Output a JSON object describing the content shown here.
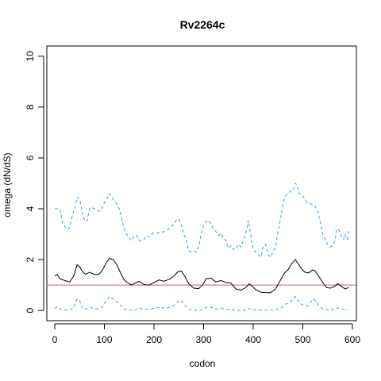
{
  "chart_data": {
    "type": "line",
    "title": "Rv2264c",
    "xlabel": "codon",
    "ylabel": "omega (dN/dS)",
    "xlim": [
      -16,
      608
    ],
    "ylim": [
      -0.4,
      10.4
    ],
    "xticks": [
      0,
      100,
      200,
      300,
      400,
      500,
      600
    ],
    "yticks": [
      0,
      2,
      4,
      6,
      8,
      10
    ],
    "grid": false,
    "reference_line": {
      "y": 1,
      "color": "#c2569c"
    },
    "series": [
      {
        "style": "solid",
        "color": "#000000",
        "points": [
          [
            0,
            1.35
          ],
          [
            5,
            1.42
          ],
          [
            10,
            1.25
          ],
          [
            20,
            1.18
          ],
          [
            30,
            1.12
          ],
          [
            38,
            1.35
          ],
          [
            45,
            1.8
          ],
          [
            50,
            1.72
          ],
          [
            55,
            1.55
          ],
          [
            62,
            1.42
          ],
          [
            70,
            1.5
          ],
          [
            80,
            1.42
          ],
          [
            88,
            1.42
          ],
          [
            95,
            1.55
          ],
          [
            103,
            1.85
          ],
          [
            110,
            2.05
          ],
          [
            118,
            2.0
          ],
          [
            125,
            1.8
          ],
          [
            132,
            1.5
          ],
          [
            140,
            1.2
          ],
          [
            148,
            1.08
          ],
          [
            155,
            1.0
          ],
          [
            162,
            1.08
          ],
          [
            170,
            1.15
          ],
          [
            180,
            1.02
          ],
          [
            190,
            1.0
          ],
          [
            200,
            1.1
          ],
          [
            210,
            1.2
          ],
          [
            220,
            1.15
          ],
          [
            230,
            1.22
          ],
          [
            240,
            1.35
          ],
          [
            248,
            1.52
          ],
          [
            255,
            1.55
          ],
          [
            262,
            1.35
          ],
          [
            270,
            1.05
          ],
          [
            280,
            0.88
          ],
          [
            290,
            0.86
          ],
          [
            298,
            1.0
          ],
          [
            305,
            1.25
          ],
          [
            315,
            1.27
          ],
          [
            325,
            1.12
          ],
          [
            335,
            1.18
          ],
          [
            345,
            1.1
          ],
          [
            355,
            1.08
          ],
          [
            365,
            0.85
          ],
          [
            375,
            0.8
          ],
          [
            385,
            0.9
          ],
          [
            392,
            1.05
          ],
          [
            398,
            0.95
          ],
          [
            405,
            0.82
          ],
          [
            415,
            0.72
          ],
          [
            425,
            0.7
          ],
          [
            435,
            0.7
          ],
          [
            445,
            0.85
          ],
          [
            455,
            1.2
          ],
          [
            462,
            1.45
          ],
          [
            470,
            1.6
          ],
          [
            478,
            1.85
          ],
          [
            485,
            2.0
          ],
          [
            490,
            1.85
          ],
          [
            497,
            1.65
          ],
          [
            505,
            1.5
          ],
          [
            512,
            1.48
          ],
          [
            520,
            1.6
          ],
          [
            525,
            1.55
          ],
          [
            532,
            1.35
          ],
          [
            540,
            1.1
          ],
          [
            548,
            0.9
          ],
          [
            556,
            0.88
          ],
          [
            564,
            0.95
          ],
          [
            570,
            1.05
          ],
          [
            578,
            0.95
          ],
          [
            585,
            0.85
          ],
          [
            592,
            0.9
          ]
        ]
      },
      {
        "style": "dashed",
        "color": "#3aa0e0",
        "points": [
          [
            0,
            4.0
          ],
          [
            5,
            4.0
          ],
          [
            10,
            4.0
          ],
          [
            15,
            3.5
          ],
          [
            20,
            3.3
          ],
          [
            25,
            3.2
          ],
          [
            30,
            3.25
          ],
          [
            35,
            3.7
          ],
          [
            40,
            4.0
          ],
          [
            45,
            4.45
          ],
          [
            50,
            4.4
          ],
          [
            55,
            3.9
          ],
          [
            60,
            3.55
          ],
          [
            65,
            3.5
          ],
          [
            70,
            4.0
          ],
          [
            75,
            4.05
          ],
          [
            80,
            4.0
          ],
          [
            85,
            3.95
          ],
          [
            90,
            3.9
          ],
          [
            95,
            4.0
          ],
          [
            100,
            4.25
          ],
          [
            105,
            4.4
          ],
          [
            110,
            4.6
          ],
          [
            115,
            4.45
          ],
          [
            120,
            4.3
          ],
          [
            125,
            4.2
          ],
          [
            130,
            4.0
          ],
          [
            135,
            3.6
          ],
          [
            140,
            3.2
          ],
          [
            145,
            3.0
          ],
          [
            150,
            2.85
          ],
          [
            155,
            2.75
          ],
          [
            160,
            2.95
          ],
          [
            165,
            2.95
          ],
          [
            170,
            2.75
          ],
          [
            175,
            2.75
          ],
          [
            180,
            2.8
          ],
          [
            185,
            2.95
          ],
          [
            190,
            2.9
          ],
          [
            195,
            3.0
          ],
          [
            200,
            3.05
          ],
          [
            210,
            3.05
          ],
          [
            220,
            3.1
          ],
          [
            230,
            3.2
          ],
          [
            240,
            3.4
          ],
          [
            245,
            3.55
          ],
          [
            250,
            3.6
          ],
          [
            255,
            3.35
          ],
          [
            260,
            3.0
          ],
          [
            265,
            2.8
          ],
          [
            270,
            2.35
          ],
          [
            275,
            2.3
          ],
          [
            280,
            2.35
          ],
          [
            285,
            2.3
          ],
          [
            290,
            2.5
          ],
          [
            295,
            3.0
          ],
          [
            300,
            3.35
          ],
          [
            305,
            3.5
          ],
          [
            310,
            3.55
          ],
          [
            315,
            3.4
          ],
          [
            320,
            3.2
          ],
          [
            325,
            3.1
          ],
          [
            330,
            2.95
          ],
          [
            335,
            3.05
          ],
          [
            340,
            2.85
          ],
          [
            345,
            2.75
          ],
          [
            350,
            2.45
          ],
          [
            355,
            2.55
          ],
          [
            360,
            2.4
          ],
          [
            365,
            2.4
          ],
          [
            370,
            2.6
          ],
          [
            375,
            2.5
          ],
          [
            380,
            2.75
          ],
          [
            385,
            3.0
          ],
          [
            390,
            3.55
          ],
          [
            395,
            3.0
          ],
          [
            400,
            2.4
          ],
          [
            405,
            2.3
          ],
          [
            410,
            2.2
          ],
          [
            415,
            2.1
          ],
          [
            420,
            2.5
          ],
          [
            425,
            2.6
          ],
          [
            430,
            2.2
          ],
          [
            435,
            2.1
          ],
          [
            440,
            2.3
          ],
          [
            445,
            2.5
          ],
          [
            450,
            3.1
          ],
          [
            455,
            3.6
          ],
          [
            460,
            4.2
          ],
          [
            465,
            4.5
          ],
          [
            470,
            4.6
          ],
          [
            475,
            4.7
          ],
          [
            480,
            4.7
          ],
          [
            485,
            5.0
          ],
          [
            488,
            4.95
          ],
          [
            492,
            4.6
          ],
          [
            500,
            4.5
          ],
          [
            505,
            4.35
          ],
          [
            510,
            4.2
          ],
          [
            515,
            4.2
          ],
          [
            520,
            4.15
          ],
          [
            525,
            4.1
          ],
          [
            530,
            3.9
          ],
          [
            535,
            3.5
          ],
          [
            540,
            3.0
          ],
          [
            545,
            2.8
          ],
          [
            550,
            2.6
          ],
          [
            555,
            2.5
          ],
          [
            560,
            2.55
          ],
          [
            565,
            2.75
          ],
          [
            568,
            3.2
          ],
          [
            572,
            3.2
          ],
          [
            578,
            2.9
          ],
          [
            582,
            2.8
          ],
          [
            585,
            3.0
          ],
          [
            590,
            2.8
          ],
          [
            592,
            3.15
          ]
        ]
      },
      {
        "style": "dashed",
        "color": "#3aa0e0",
        "points": [
          [
            0,
            0.08
          ],
          [
            5,
            0.15
          ],
          [
            10,
            0.05
          ],
          [
            20,
            0.02
          ],
          [
            30,
            0.02
          ],
          [
            38,
            0.1
          ],
          [
            45,
            0.45
          ],
          [
            50,
            0.4
          ],
          [
            55,
            0.1
          ],
          [
            62,
            0.05
          ],
          [
            70,
            0.12
          ],
          [
            80,
            0.08
          ],
          [
            88,
            0.06
          ],
          [
            95,
            0.12
          ],
          [
            103,
            0.35
          ],
          [
            110,
            0.55
          ],
          [
            118,
            0.45
          ],
          [
            125,
            0.35
          ],
          [
            132,
            0.2
          ],
          [
            140,
            0.05
          ],
          [
            148,
            0.02
          ],
          [
            160,
            0.02
          ],
          [
            170,
            0.1
          ],
          [
            180,
            0.04
          ],
          [
            190,
            0.05
          ],
          [
            200,
            0.08
          ],
          [
            210,
            0.12
          ],
          [
            220,
            0.1
          ],
          [
            230,
            0.12
          ],
          [
            240,
            0.2
          ],
          [
            248,
            0.35
          ],
          [
            255,
            0.4
          ],
          [
            262,
            0.2
          ],
          [
            270,
            0.05
          ],
          [
            280,
            0.01
          ],
          [
            290,
            0.01
          ],
          [
            298,
            0.03
          ],
          [
            305,
            0.12
          ],
          [
            315,
            0.12
          ],
          [
            325,
            0.06
          ],
          [
            335,
            0.08
          ],
          [
            345,
            0.05
          ],
          [
            355,
            0.04
          ],
          [
            365,
            0.01
          ],
          [
            375,
            0.01
          ],
          [
            385,
            0.02
          ],
          [
            392,
            0.08
          ],
          [
            400,
            0.03
          ],
          [
            410,
            0.01
          ],
          [
            420,
            0.01
          ],
          [
            430,
            0.01
          ],
          [
            440,
            0.02
          ],
          [
            450,
            0.05
          ],
          [
            458,
            0.12
          ],
          [
            465,
            0.25
          ],
          [
            472,
            0.3
          ],
          [
            478,
            0.4
          ],
          [
            485,
            0.55
          ],
          [
            490,
            0.4
          ],
          [
            497,
            0.25
          ],
          [
            505,
            0.18
          ],
          [
            512,
            0.2
          ],
          [
            520,
            0.45
          ],
          [
            525,
            0.4
          ],
          [
            532,
            0.2
          ],
          [
            540,
            0.06
          ],
          [
            548,
            0.02
          ],
          [
            556,
            0.02
          ],
          [
            564,
            0.05
          ],
          [
            570,
            0.1
          ],
          [
            578,
            0.06
          ],
          [
            585,
            0.04
          ],
          [
            592,
            0.04
          ]
        ]
      }
    ]
  }
}
